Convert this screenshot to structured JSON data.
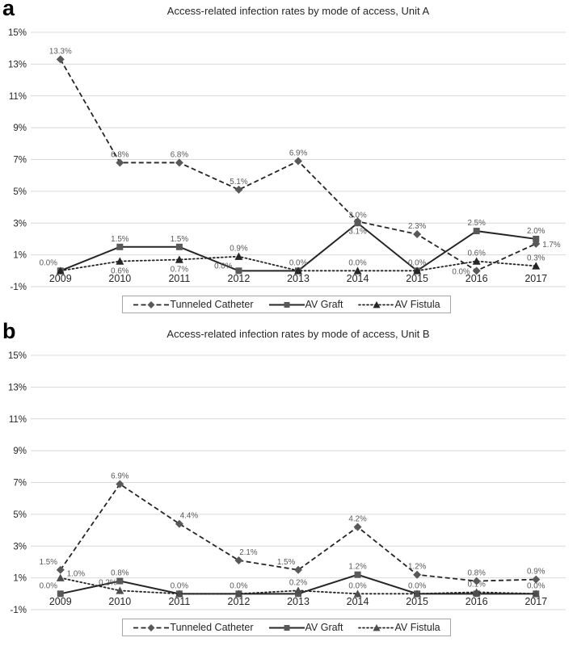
{
  "figure": {
    "panels": [
      {
        "letter": "a"
      },
      {
        "letter": "b"
      }
    ]
  },
  "chart_data": [
    {
      "type": "line",
      "panel_letter": "a",
      "title": "Access-related infection rates by mode of access, Unit A",
      "categories": [
        "2009",
        "2010",
        "2011",
        "2012",
        "2013",
        "2014",
        "2015",
        "2016",
        "2017"
      ],
      "ylim": [
        -1,
        15
      ],
      "yticks": [
        15,
        13,
        11,
        9,
        7,
        5,
        3,
        1,
        -1
      ],
      "ytick_suffix": "%",
      "grid": true,
      "legend_position": "bottom",
      "colors": {
        "grid": "#d9d9d9",
        "data_label": "#595959",
        "tick_label": "#262626"
      },
      "series": [
        {
          "name": "Tunneled Catheter",
          "marker": "diamond",
          "line_style": "dashed",
          "line_color": "#262626",
          "marker_color": "#595959",
          "values": [
            13.3,
            6.8,
            6.8,
            5.1,
            6.9,
            3.1,
            2.3,
            0.0,
            1.7
          ],
          "labels": [
            "13.3%",
            "6.8%",
            "6.8%",
            "5.1%",
            "6.9%",
            "3.1%",
            "2.3%",
            "0.0%",
            "1.7%"
          ],
          "label_pos": [
            "a",
            "a",
            "a",
            "a",
            "a",
            "b",
            "a",
            "l",
            "r"
          ]
        },
        {
          "name": "AV Graft",
          "marker": "square",
          "line_style": "solid",
          "line_color": "#262626",
          "marker_color": "#595959",
          "values": [
            0.0,
            1.5,
            1.5,
            0.0,
            0.0,
            3.0,
            0.0,
            2.5,
            2.0
          ],
          "labels": [
            "0.0%",
            "1.5%",
            "1.5%",
            "0.0%",
            "0.0%",
            "3.0%",
            "0.0%",
            "2.5%",
            "2.0%"
          ],
          "label_pos": [
            "al",
            "a",
            "a",
            "la",
            "a",
            "a",
            "a",
            "a",
            "a"
          ]
        },
        {
          "name": "AV Fistula",
          "marker": "triangle",
          "line_style": "dotted",
          "line_color": "#262626",
          "marker_color": "#262626",
          "values": [
            0.0,
            0.6,
            0.7,
            0.9,
            0.0,
            0.0,
            0.0,
            0.6,
            0.3
          ],
          "labels": [
            null,
            "0.6%",
            "0.7%",
            "0.9%",
            null,
            "0.0%",
            null,
            "0.6%",
            "0.3%"
          ],
          "label_pos": [
            null,
            "b",
            "b",
            "a",
            null,
            "a",
            null,
            "a",
            "a"
          ]
        }
      ]
    },
    {
      "type": "line",
      "panel_letter": "b",
      "title": "Access-related infection rates by mode of access, Unit B",
      "categories": [
        "2009",
        "2010",
        "2011",
        "2012",
        "2013",
        "2014",
        "2015",
        "2016",
        "2017"
      ],
      "ylim": [
        -1,
        15
      ],
      "yticks": [
        15,
        13,
        11,
        9,
        7,
        5,
        3,
        1,
        -1
      ],
      "ytick_suffix": "%",
      "grid": true,
      "legend_position": "bottom",
      "colors": {
        "grid": "#d9d9d9",
        "data_label": "#595959",
        "tick_label": "#262626"
      },
      "series": [
        {
          "name": "Tunneled Catheter",
          "marker": "diamond",
          "line_style": "dashed",
          "line_color": "#262626",
          "marker_color": "#595959",
          "values": [
            1.5,
            6.9,
            4.4,
            2.1,
            1.5,
            4.2,
            1.2,
            0.8,
            0.9
          ],
          "labels": [
            "1.5%",
            "6.9%",
            "4.4%",
            "2.1%",
            "1.5%",
            "4.2%",
            "1.2%",
            "0.8%",
            "0.9%"
          ],
          "label_pos": [
            "al",
            "a",
            "ar",
            "ar",
            "al",
            "a",
            "a",
            "a",
            "a"
          ]
        },
        {
          "name": "AV Graft",
          "marker": "square",
          "line_style": "solid",
          "line_color": "#262626",
          "marker_color": "#595959",
          "values": [
            0.0,
            0.8,
            0.0,
            0.0,
            0.0,
            1.2,
            0.0,
            0.0,
            0.0
          ],
          "labels": [
            "0.0%",
            "0.8%",
            "0.0%",
            "0.0%",
            null,
            "1.2%",
            "0.0%",
            null,
            null
          ],
          "label_pos": [
            "al",
            "a",
            "a",
            "a",
            null,
            "a",
            "a",
            null,
            null
          ]
        },
        {
          "name": "AV Fistula",
          "marker": "triangle",
          "line_style": "dotted",
          "line_color": "#262626",
          "marker_color": "#4d4d4d",
          "values": [
            1.0,
            0.2,
            0.0,
            0.0,
            0.2,
            0.0,
            0.0,
            0.1,
            0.0
          ],
          "labels": [
            "1.0%",
            "0.2%",
            null,
            null,
            "0.2%",
            "0.0%",
            null,
            "0.1%",
            "0.0%"
          ],
          "label_pos": [
            "ra",
            "al",
            null,
            null,
            "a",
            "a",
            null,
            "a",
            "a"
          ]
        }
      ]
    }
  ]
}
